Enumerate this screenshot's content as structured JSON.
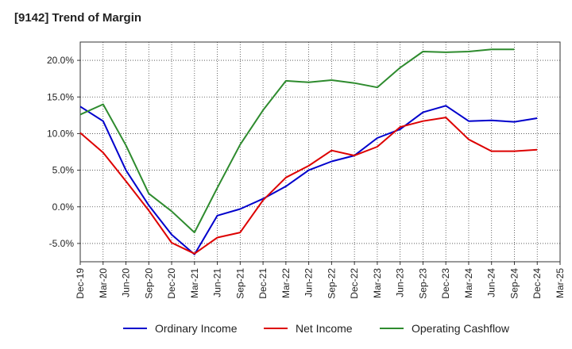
{
  "title": "[9142]  Trend of Margin",
  "chart_data": {
    "type": "line",
    "x": [
      "Dec-19",
      "Mar-20",
      "Jun-20",
      "Sep-20",
      "Dec-20",
      "Mar-21",
      "Jun-21",
      "Sep-21",
      "Dec-21",
      "Mar-22",
      "Jun-22",
      "Sep-22",
      "Dec-22",
      "Mar-23",
      "Jun-23",
      "Sep-23",
      "Dec-23",
      "Mar-24",
      "Jun-24",
      "Sep-24",
      "Dec-24",
      "Mar-25"
    ],
    "ylim": [
      -7.5,
      22.5
    ],
    "yticks": [
      -5,
      0,
      5,
      10,
      15,
      20
    ],
    "ytick_labels": [
      "-5.0%",
      "0.0%",
      "5.0%",
      "10.0%",
      "15.0%",
      "20.0%"
    ],
    "grid": "dotted",
    "legend_position": "bottom",
    "series": [
      {
        "name": "Ordinary Income",
        "color": "#0000cc",
        "values": [
          13.7,
          11.7,
          5.0,
          0.2,
          -3.8,
          -6.5,
          -1.2,
          -0.3,
          1.1,
          2.8,
          5.0,
          6.2,
          7.0,
          9.4,
          10.6,
          12.9,
          13.8,
          11.7,
          11.8,
          11.6,
          12.1,
          null
        ]
      },
      {
        "name": "Net Income",
        "color": "#dd0000",
        "values": [
          10.1,
          7.4,
          3.5,
          -0.5,
          -4.9,
          -6.4,
          -4.2,
          -3.5,
          0.9,
          4.0,
          5.6,
          7.7,
          7.0,
          8.2,
          10.9,
          11.7,
          12.2,
          9.2,
          7.6,
          7.6,
          7.8,
          null
        ]
      },
      {
        "name": "Operating Cashflow",
        "color": "#2e8b2e",
        "values": [
          12.6,
          14.0,
          8.4,
          1.8,
          -0.6,
          -3.5,
          2.6,
          8.5,
          13.2,
          17.2,
          17.0,
          17.3,
          16.9,
          16.3,
          19.0,
          21.2,
          21.1,
          21.2,
          21.5,
          21.5,
          null,
          null
        ]
      }
    ]
  }
}
